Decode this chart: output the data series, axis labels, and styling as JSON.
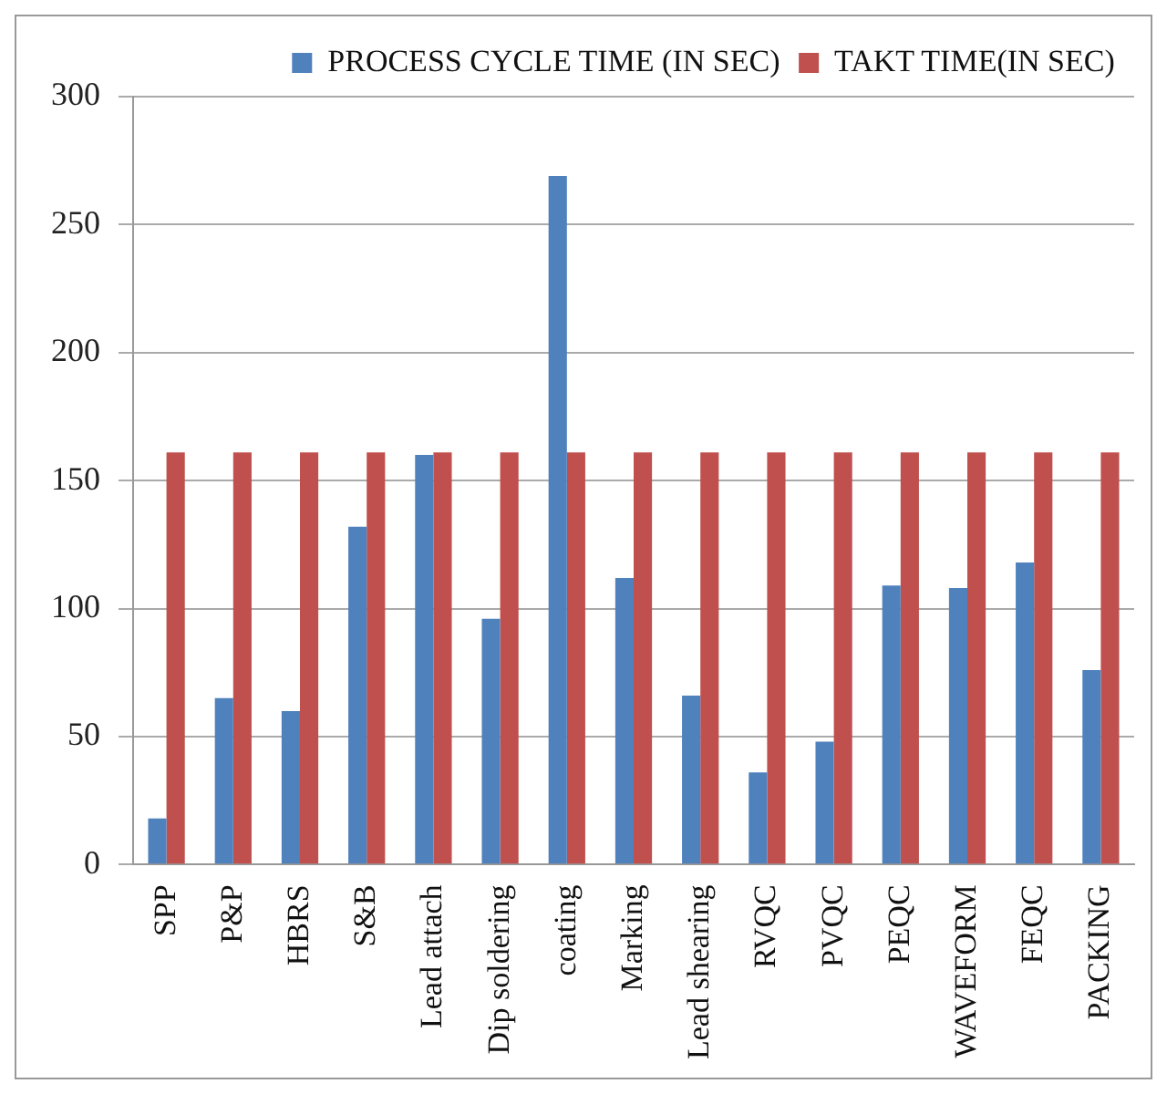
{
  "chart_data": {
    "type": "bar",
    "categories": [
      "SPP",
      "P&P",
      "HBRS",
      "S&B",
      "Lead attach",
      "Dip soldering",
      "coating",
      "Marking",
      "Lead shearing",
      "RVQC",
      "PVQC",
      "PEQC",
      "WAVEFORM",
      "FEQC",
      "PACKING"
    ],
    "series": [
      {
        "name": "PROCESS CYCLE TIME (IN SEC)",
        "color": "#4f81bd",
        "values": [
          18,
          65,
          60,
          132,
          160,
          96,
          269,
          112,
          66,
          36,
          48,
          109,
          108,
          118,
          76
        ]
      },
      {
        "name": "TAKT TIME(IN SEC)",
        "color": "#c0504d",
        "values": [
          161,
          161,
          161,
          161,
          161,
          161,
          161,
          161,
          161,
          161,
          161,
          161,
          161,
          161,
          161
        ]
      }
    ],
    "ylim": [
      0,
      300
    ],
    "yticks": [
      0,
      50,
      100,
      150,
      200,
      250,
      300
    ],
    "grid": "y",
    "legend": "top right"
  }
}
